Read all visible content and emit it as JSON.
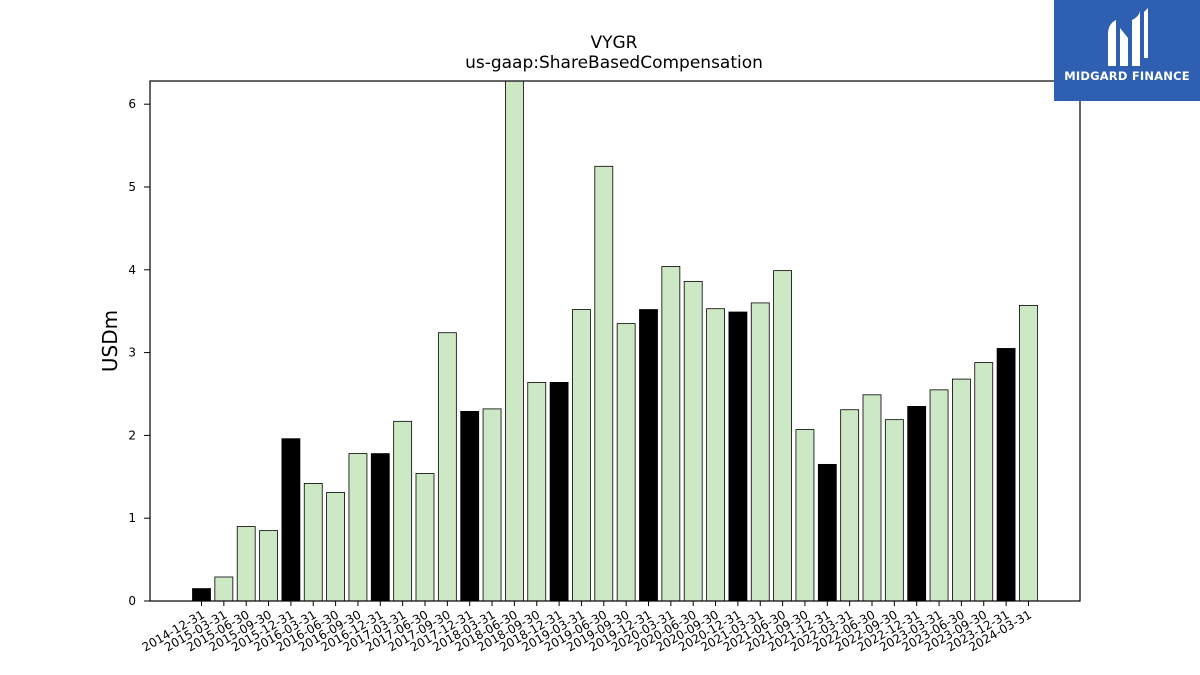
{
  "brand": {
    "name": "MIDGARD FINANCE",
    "colors": {
      "background": "#2f5fb0",
      "text": "#ffffff"
    }
  },
  "chart_data": {
    "type": "bar",
    "title": "VYGR",
    "subtitle": "us-gaap:ShareBasedCompensation",
    "xlabel": "",
    "ylabel": "USDm",
    "ylim": [
      0,
      6.28
    ],
    "yticks": [
      0,
      1,
      2,
      3,
      4,
      5,
      6
    ],
    "grid": false,
    "categories": [
      "2014-12-31",
      "2015-03-31",
      "2015-06-30",
      "2015-09-30",
      "2015-12-31",
      "2016-03-31",
      "2016-06-30",
      "2016-09-30",
      "2016-12-31",
      "2017-03-31",
      "2017-06-30",
      "2017-09-30",
      "2017-12-31",
      "2018-03-31",
      "2018-06-30",
      "2018-09-30",
      "2018-12-31",
      "2019-03-31",
      "2019-06-30",
      "2019-09-30",
      "2019-12-31",
      "2020-03-31",
      "2020-06-30",
      "2020-09-30",
      "2020-12-31",
      "2021-03-31",
      "2021-06-30",
      "2021-09-30",
      "2021-12-31",
      "2022-03-31",
      "2022-06-30",
      "2022-09-30",
      "2022-12-31",
      "2023-03-31",
      "2023-06-30",
      "2023-09-30",
      "2023-12-31",
      "2024-03-31"
    ],
    "values": [
      0.15,
      0.29,
      0.9,
      0.85,
      1.96,
      1.42,
      1.31,
      1.78,
      1.78,
      2.17,
      1.54,
      3.24,
      2.29,
      2.32,
      6.28,
      2.64,
      2.64,
      3.52,
      5.25,
      3.35,
      3.52,
      4.04,
      3.86,
      3.53,
      3.49,
      3.6,
      3.99,
      2.07,
      1.65,
      2.31,
      2.49,
      2.19,
      2.35,
      2.55,
      2.68,
      2.88,
      3.05,
      3.57
    ],
    "bar_colors": [
      "#000000",
      "#cce8c4",
      "#cce8c4",
      "#cce8c4",
      "#000000",
      "#cce8c4",
      "#cce8c4",
      "#cce8c4",
      "#000000",
      "#cce8c4",
      "#cce8c4",
      "#cce8c4",
      "#000000",
      "#cce8c4",
      "#cce8c4",
      "#cce8c4",
      "#000000",
      "#cce8c4",
      "#cce8c4",
      "#cce8c4",
      "#000000",
      "#cce8c4",
      "#cce8c4",
      "#cce8c4",
      "#000000",
      "#cce8c4",
      "#cce8c4",
      "#cce8c4",
      "#000000",
      "#cce8c4",
      "#cce8c4",
      "#cce8c4",
      "#000000",
      "#cce8c4",
      "#cce8c4",
      "#cce8c4",
      "#000000",
      "#cce8c4"
    ],
    "colors": {
      "quarter": "#cce8c4",
      "year_end": "#000000",
      "edge": "#000000"
    }
  }
}
